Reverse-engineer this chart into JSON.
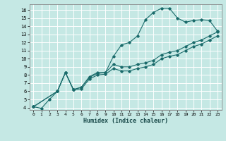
{
  "xlabel": "Humidex (Indice chaleur)",
  "xlim": [
    -0.5,
    23.5
  ],
  "ylim": [
    3.7,
    16.7
  ],
  "xticks": [
    0,
    1,
    2,
    3,
    4,
    5,
    6,
    7,
    8,
    9,
    10,
    11,
    12,
    13,
    14,
    15,
    16,
    17,
    18,
    19,
    20,
    21,
    22,
    23
  ],
  "yticks": [
    4,
    5,
    6,
    7,
    8,
    9,
    10,
    11,
    12,
    13,
    14,
    15,
    16
  ],
  "bg_color": "#c5e8e4",
  "line_color": "#1a6b6b",
  "grid_color": "#ffffff",
  "line1_x": [
    0,
    1,
    2,
    3,
    4,
    5,
    6,
    7,
    8,
    9,
    10,
    11,
    12,
    13,
    14,
    15,
    16,
    17,
    18,
    19,
    20,
    21,
    22,
    23
  ],
  "line1_y": [
    4.1,
    3.9,
    5.0,
    6.0,
    8.3,
    6.2,
    6.5,
    7.8,
    8.3,
    8.3,
    10.3,
    11.7,
    12.0,
    12.8,
    14.8,
    15.7,
    16.2,
    16.2,
    15.0,
    14.5,
    14.7,
    14.8,
    14.7,
    13.4
  ],
  "line2_x": [
    0,
    3,
    4,
    5,
    6,
    7,
    8,
    9,
    10,
    11,
    12,
    13,
    14,
    15,
    16,
    17,
    18,
    19,
    20,
    21,
    22,
    23
  ],
  "line2_y": [
    4.1,
    6.0,
    8.3,
    6.2,
    6.5,
    7.7,
    8.2,
    8.3,
    9.3,
    9.0,
    9.0,
    9.3,
    9.5,
    9.8,
    10.5,
    10.8,
    11.0,
    11.5,
    12.0,
    12.3,
    12.8,
    13.3
  ],
  "line3_x": [
    0,
    3,
    4,
    5,
    6,
    7,
    8,
    9,
    10,
    11,
    12,
    13,
    14,
    15,
    16,
    17,
    18,
    19,
    20,
    21,
    22,
    23
  ],
  "line3_y": [
    4.1,
    6.0,
    8.3,
    6.2,
    6.3,
    7.5,
    8.0,
    8.1,
    8.8,
    8.5,
    8.5,
    8.8,
    9.0,
    9.3,
    10.0,
    10.3,
    10.5,
    11.0,
    11.5,
    11.8,
    12.3,
    12.8
  ]
}
